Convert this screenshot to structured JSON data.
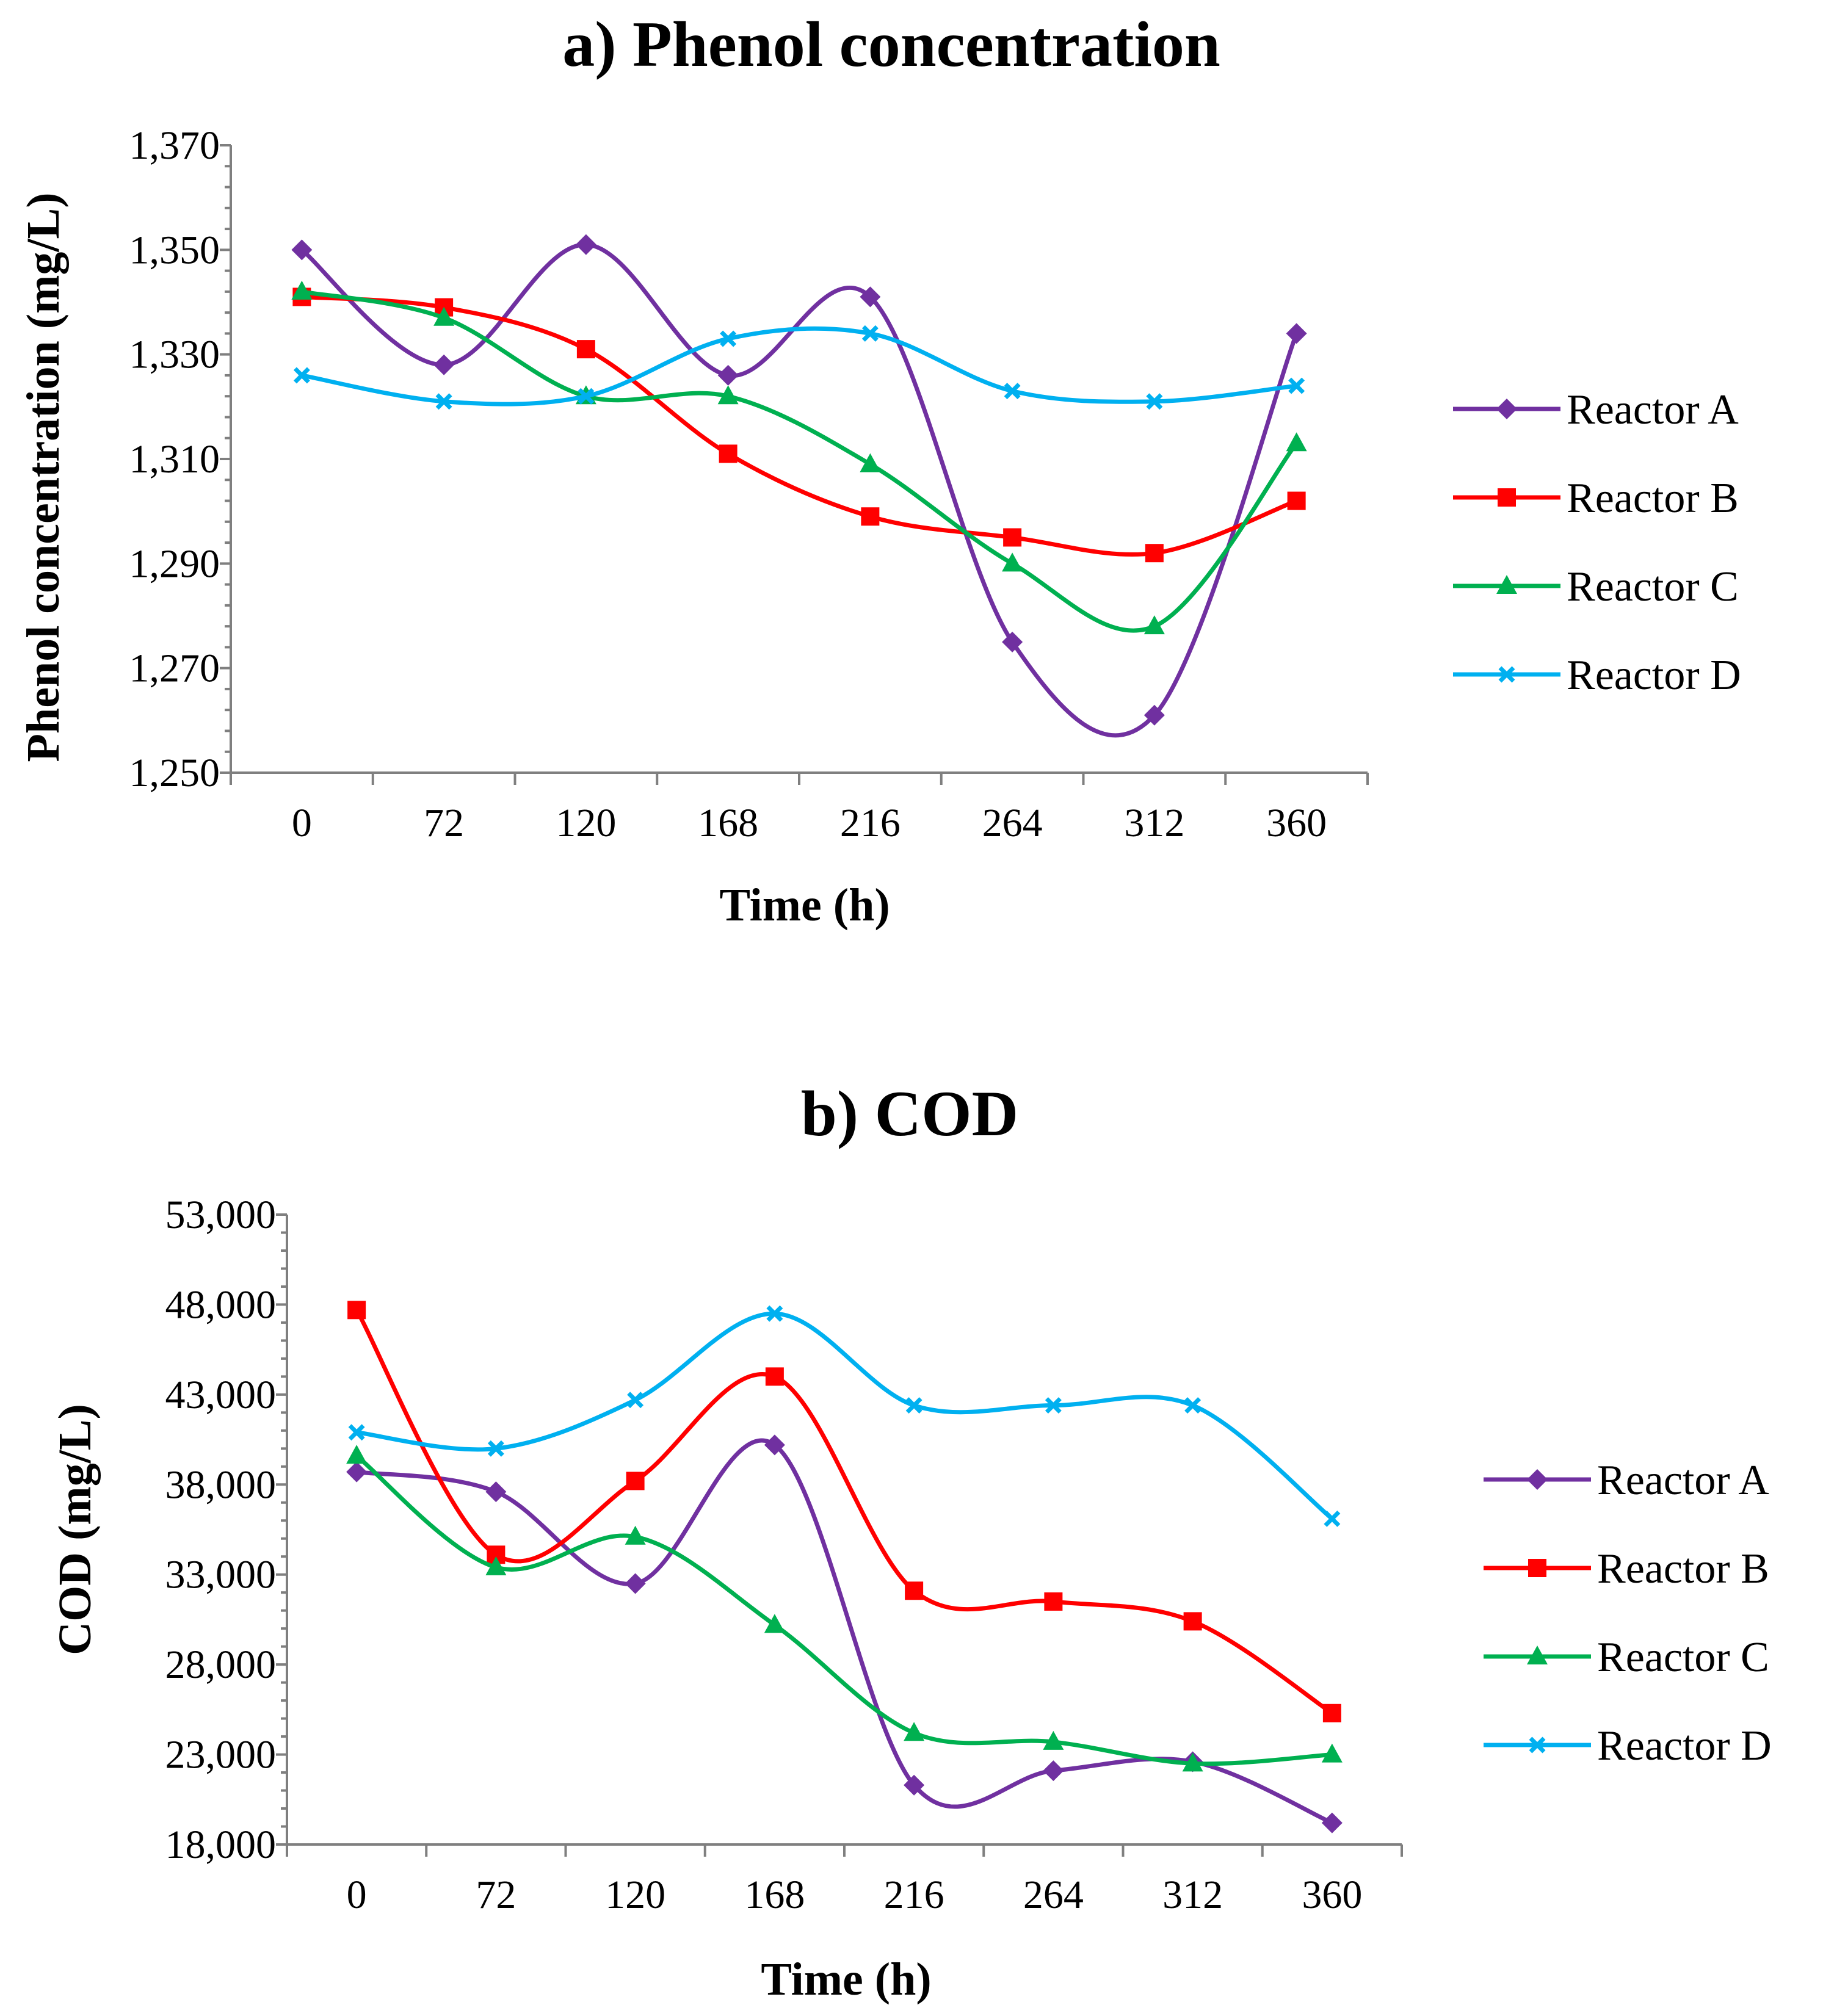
{
  "chart_data": [
    {
      "type": "line",
      "title": "a) Phenol concentration",
      "xlabel": "Time (h)",
      "ylabel": "Phenol concentration (mg/L)",
      "categories": [
        "0",
        "72",
        "120",
        "168",
        "216",
        "264",
        "312",
        "360"
      ],
      "ylim": [
        1250,
        1370
      ],
      "yticks": [
        1250,
        1270,
        1290,
        1310,
        1330,
        1350,
        1370
      ],
      "ytick_labels": [
        "1,250",
        "1,270",
        "1,290",
        "1,310",
        "1,330",
        "1,350",
        "1,370"
      ],
      "legend_position": "right",
      "series": [
        {
          "name": "Reactor A",
          "color": "#7030a0",
          "marker": "diamond",
          "values": [
            1350,
            1328,
            1351,
            1326,
            1341,
            1275,
            1261,
            1334
          ]
        },
        {
          "name": "Reactor B",
          "color": "#ff0000",
          "marker": "square",
          "values": [
            1341,
            1339,
            1331,
            1311,
            1299,
            1295,
            1292,
            1302
          ]
        },
        {
          "name": "Reactor C",
          "color": "#00b050",
          "marker": "triangle",
          "values": [
            1342,
            1337,
            1322,
            1322,
            1309,
            1290,
            1278,
            1313
          ]
        },
        {
          "name": "Reactor D",
          "color": "#00b0f0",
          "marker": "x",
          "values": [
            1326,
            1321,
            1322,
            1333,
            1334,
            1323,
            1321,
            1324
          ]
        }
      ]
    },
    {
      "type": "line",
      "title": "b) COD",
      "xlabel": "Time (h)",
      "ylabel": "COD (mg/L)",
      "categories": [
        "0",
        "72",
        "120",
        "168",
        "216",
        "264",
        "312",
        "360"
      ],
      "ylim": [
        18000,
        53000
      ],
      "yticks": [
        18000,
        23000,
        28000,
        33000,
        38000,
        43000,
        48000,
        53000
      ],
      "ytick_labels": [
        "18,000",
        "23,000",
        "28,000",
        "33,000",
        "38,000",
        "43,000",
        "48,000",
        "53,000"
      ],
      "legend_position": "right",
      "series": [
        {
          "name": "Reactor A",
          "color": "#7030a0",
          "marker": "diamond",
          "values": [
            38700,
            37600,
            32500,
            40200,
            21300,
            22100,
            22600,
            19200
          ]
        },
        {
          "name": "Reactor B",
          "color": "#ff0000",
          "marker": "square",
          "values": [
            47700,
            34100,
            38200,
            44000,
            32100,
            31500,
            30400,
            25300
          ]
        },
        {
          "name": "Reactor C",
          "color": "#00b050",
          "marker": "triangle",
          "values": [
            39600,
            33400,
            35100,
            30200,
            24200,
            23700,
            22500,
            23000
          ]
        },
        {
          "name": "Reactor D",
          "color": "#00b0f0",
          "marker": "x",
          "values": [
            40900,
            40000,
            42700,
            47500,
            42400,
            42400,
            42400,
            36100
          ]
        }
      ]
    }
  ]
}
